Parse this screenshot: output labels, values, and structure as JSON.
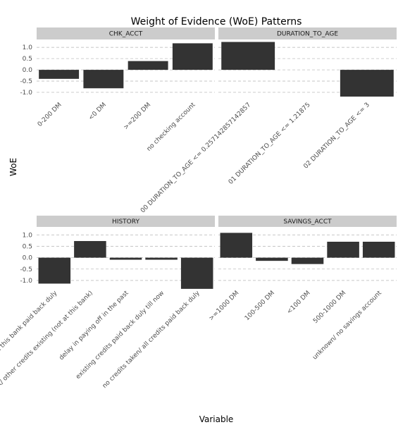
{
  "chart_data": {
    "type": "bar",
    "title": "Weight of Evidence (WoE) Patterns",
    "xlabel": "Variable",
    "ylabel": "WoE",
    "ylim": [
      -1.25,
      1.35
    ],
    "yticks": [
      "1.0",
      "0.5",
      "0.0",
      "-0.5",
      "-1.0"
    ],
    "ytick_values": [
      1.0,
      0.5,
      0.0,
      -0.5,
      -1.0
    ],
    "grid": true,
    "colors": {
      "bar": "#333333",
      "strip": "#cccccc",
      "grid": "#bfbfbf"
    },
    "panels": [
      {
        "name": "CHK_ACCT",
        "categories": [
          "0-200 DM",
          "<0 DM",
          ">=200 DM",
          "no checking account"
        ],
        "values": [
          -0.4,
          -0.82,
          0.39,
          1.18
        ]
      },
      {
        "name": "DURATION_TO_AGE",
        "categories": [
          "00 DURATION_TO_AGE <= 0.257142857142857",
          "01 DURATION_TO_AGE <= 1.21875",
          "02 DURATION_TO_AGE <= 3"
        ],
        "values": [
          1.24,
          0.0,
          -1.19
        ]
      },
      {
        "name": "HISTORY",
        "categories": [
          "all credits at this bank paid back duly",
          "critical account/ other credits existing (not at this bank)",
          "delay in paying off in the past",
          "existing credits paid back duly till now",
          "no credits taken/ all credits paid back duly"
        ],
        "values": [
          -1.14,
          0.73,
          -0.09,
          -0.09,
          -1.37
        ]
      },
      {
        "name": "SAVINGS_ACCT",
        "categories": [
          ">=1000 DM",
          "100-500 DM",
          "<100 DM",
          "500-1000 DM",
          "unknown/ no savings account"
        ],
        "values": [
          1.09,
          -0.14,
          -0.28,
          0.7,
          0.7
        ]
      }
    ]
  }
}
